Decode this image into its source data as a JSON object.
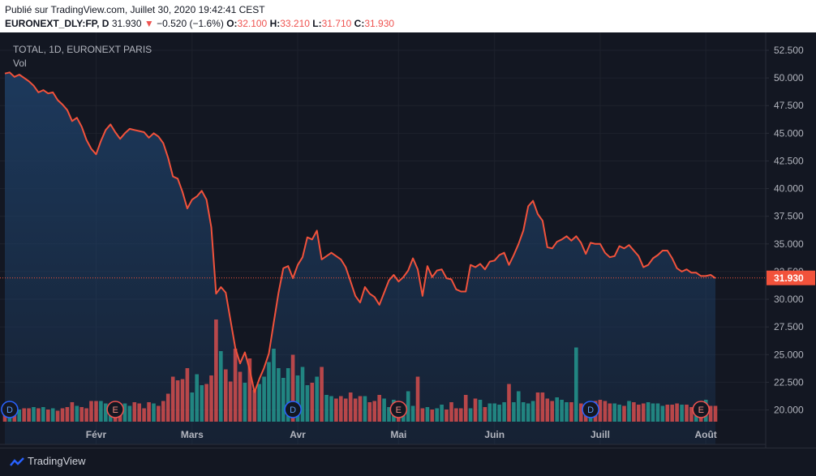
{
  "header": {
    "published": "Publié sur TradingView.com, Juillet 30, 2020 19:42:41 CEST",
    "symbol": "EURONEXT_DLY:FP, D",
    "last": "31.930",
    "change_arrow": "▼",
    "change": "−0.520 (−1.6%)",
    "o_label": "O:",
    "o_value": "32.100",
    "h_label": "H:",
    "h_value": "33.210",
    "l_label": "L:",
    "l_value": "31.710",
    "c_label": "C:",
    "c_value": "31.930"
  },
  "legend": {
    "series_title": "TOTAL, 1D, EURONEXT PARIS",
    "volume": "Vol"
  },
  "footer": {
    "brand": "TradingView"
  },
  "colors": {
    "line": "#f2523b",
    "up": "#26a69a",
    "down": "#ef5350",
    "bg": "#131722",
    "grid": "#1e222d",
    "axis_text": "#b2b5be"
  },
  "chart_data": {
    "type": "line",
    "yticks": [
      "52.500",
      "50.000",
      "47.500",
      "45.000",
      "42.500",
      "40.000",
      "37.500",
      "35.000",
      "32.500",
      "30.000",
      "27.500",
      "25.000",
      "22.500",
      "20.000"
    ],
    "ylim": [
      19.0,
      53.6
    ],
    "xticks": [
      {
        "label": "Févr",
        "i": 19
      },
      {
        "label": "Mars",
        "i": 39
      },
      {
        "label": "Avr",
        "i": 61
      },
      {
        "label": "Mai",
        "i": 82
      },
      {
        "label": "Juin",
        "i": 102
      },
      {
        "label": "Juill",
        "i": 124
      },
      {
        "label": "Août",
        "i": 146
      }
    ],
    "last_price_label": "31.930",
    "last_price": 31.93,
    "close": [
      50.4,
      50.5,
      50.1,
      50.3,
      50.0,
      49.7,
      49.3,
      48.7,
      48.9,
      48.6,
      48.7,
      48.0,
      47.6,
      47.1,
      46.1,
      46.4,
      45.6,
      44.4,
      43.6,
      43.1,
      44.3,
      45.3,
      45.8,
      45.1,
      44.5,
      45.0,
      45.4,
      45.3,
      45.2,
      45.1,
      44.6,
      45.0,
      44.7,
      44.1,
      42.8,
      41.1,
      40.9,
      39.7,
      38.2,
      39.0,
      39.3,
      39.8,
      39.0,
      36.5,
      30.5,
      31.1,
      30.6,
      28.1,
      25.6,
      24.2,
      25.2,
      23.6,
      21.6,
      22.8,
      23.8,
      25.1,
      27.9,
      30.6,
      32.8,
      33.0,
      31.9,
      33.1,
      33.8,
      35.6,
      35.4,
      36.2,
      33.6,
      33.9,
      34.2,
      33.9,
      33.6,
      32.9,
      31.6,
      30.3,
      29.7,
      31.1,
      30.5,
      30.2,
      29.5,
      30.6,
      31.7,
      32.2,
      31.6,
      32.0,
      32.6,
      33.7,
      32.7,
      30.3,
      33.0,
      32.0,
      32.6,
      32.7,
      31.9,
      31.8,
      30.9,
      30.7,
      30.7,
      33.1,
      32.9,
      33.2,
      32.7,
      33.4,
      33.5,
      34.0,
      34.2,
      33.1,
      34.0,
      35.0,
      36.2,
      38.4,
      38.9,
      37.7,
      37.1,
      34.7,
      34.6,
      35.2,
      35.4,
      35.7,
      35.3,
      35.7,
      35.1,
      34.1,
      35.1,
      35.0,
      35.0,
      34.2,
      33.8,
      33.9,
      34.8,
      34.6,
      34.9,
      34.4,
      33.9,
      32.9,
      33.1,
      33.7,
      34.0,
      34.4,
      34.4,
      33.7,
      32.8,
      32.5,
      32.7,
      32.4,
      32.4,
      32.1,
      32.1,
      32.2,
      31.9
    ],
    "volume": {
      "max": 100,
      "values": [
        12,
        11,
        9,
        10,
        11,
        11,
        12,
        11,
        12,
        10,
        11,
        9,
        11,
        12,
        16,
        13,
        12,
        11,
        17,
        17,
        17,
        15,
        11,
        13,
        15,
        15,
        13,
        16,
        15,
        11,
        16,
        15,
        13,
        17,
        23,
        37,
        34,
        35,
        44,
        24,
        39,
        30,
        31,
        38,
        84,
        58,
        43,
        33,
        60,
        41,
        32,
        52,
        26,
        31,
        37,
        49,
        60,
        44,
        36,
        44,
        55,
        38,
        45,
        30,
        32,
        37,
        45,
        22,
        21,
        19,
        21,
        19,
        24,
        19,
        21,
        21,
        16,
        17,
        22,
        19,
        12,
        18,
        16,
        12,
        25,
        13,
        37,
        11,
        12,
        10,
        11,
        14,
        10,
        16,
        11,
        11,
        22,
        11,
        19,
        18,
        12,
        15,
        15,
        14,
        16,
        31,
        16,
        25,
        16,
        15,
        17,
        24,
        24,
        19,
        17,
        20,
        18,
        16,
        16,
        61,
        15,
        13,
        13,
        17,
        18,
        17,
        15,
        15,
        14,
        13,
        17,
        16,
        14,
        15,
        16,
        15,
        15,
        13,
        14,
        14,
        15,
        14,
        14,
        12,
        12,
        12,
        18,
        13,
        13
      ],
      "up": [
        0,
        1,
        0,
        1,
        0,
        0,
        1,
        0,
        1,
        0,
        1,
        0,
        0,
        0,
        0,
        1,
        0,
        0,
        0,
        0,
        1,
        1,
        1,
        0,
        0,
        1,
        1,
        0,
        0,
        0,
        0,
        1,
        0,
        0,
        0,
        0,
        0,
        0,
        0,
        1,
        1,
        1,
        0,
        0,
        0,
        1,
        0,
        0,
        0,
        0,
        1,
        0,
        0,
        1,
        1,
        1,
        1,
        1,
        1,
        1,
        0,
        1,
        1,
        1,
        0,
        1,
        0,
        1,
        1,
        0,
        0,
        0,
        0,
        0,
        0,
        1,
        0,
        0,
        0,
        1,
        1,
        1,
        0,
        1,
        1,
        1,
        0,
        0,
        1,
        0,
        1,
        1,
        0,
        0,
        0,
        0,
        0,
        1,
        0,
        1,
        0,
        1,
        1,
        1,
        1,
        0,
        1,
        1,
        1,
        1,
        1,
        0,
        0,
        0,
        0,
        1,
        1,
        1,
        0,
        1,
        0,
        0,
        1,
        0,
        0,
        0,
        0,
        1,
        1,
        0,
        1,
        0,
        0,
        0,
        1,
        1,
        1,
        1,
        0,
        0,
        0,
        1,
        0,
        0,
        1,
        0,
        1,
        0,
        0
      ]
    },
    "event_markers": [
      {
        "letter": "D",
        "i": 1,
        "color": "#2962ff"
      },
      {
        "letter": "E",
        "i": 23,
        "color": "#ef5350"
      },
      {
        "letter": "D",
        "i": 60,
        "color": "#2962ff"
      },
      {
        "letter": "E",
        "i": 82,
        "color": "#ef5350"
      },
      {
        "letter": "D",
        "i": 122,
        "color": "#2962ff"
      },
      {
        "letter": "E",
        "i": 145,
        "color": "#ef5350"
      }
    ]
  }
}
